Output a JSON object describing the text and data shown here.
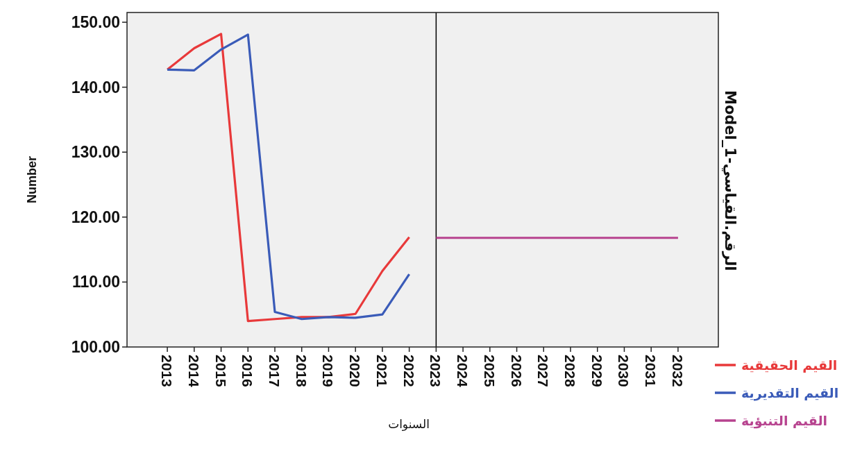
{
  "chart_data": {
    "type": "line",
    "xlabel": "السنوات",
    "ylabel": "Number",
    "y2label": "Model_1-الرقم.القياسي",
    "xlim": [
      2011.5,
      2033.5
    ],
    "xticks": [
      2013,
      2014,
      2015,
      2016,
      2017,
      2018,
      2019,
      2020,
      2021,
      2022,
      2023,
      2024,
      2025,
      2026,
      2027,
      2028,
      2029,
      2030,
      2031,
      2032
    ],
    "ylim": [
      100,
      151.5
    ],
    "yticks": [
      {
        "value": 100,
        "label": "100.00"
      },
      {
        "value": 110,
        "label": "110.00"
      },
      {
        "value": 120,
        "label": "120.00"
      },
      {
        "value": 130,
        "label": "130.00"
      },
      {
        "value": 140,
        "label": "140.00"
      },
      {
        "value": 150,
        "label": "150.00"
      }
    ],
    "grid": false,
    "legend": "bottom right",
    "marker": "none",
    "line_style": "solid",
    "ref_lines": [
      {
        "axis": "x",
        "value": 2023,
        "color": "#000000"
      }
    ],
    "series": [
      {
        "name": "القيم الحقيقية",
        "color": "#e8393a",
        "x": [
          2013,
          2014,
          2015,
          2016,
          2017,
          2018,
          2019,
          2020,
          2021,
          2022
        ],
        "values": [
          142.7,
          146.0,
          148.2,
          104.0,
          104.3,
          104.6,
          104.6,
          105.1,
          111.7,
          116.9
        ]
      },
      {
        "name": "القيم التقديرية",
        "color": "#3a5bb8",
        "x": [
          2013,
          2014,
          2015,
          2016,
          2017,
          2018,
          2019,
          2020,
          2021,
          2022
        ],
        "values": [
          142.7,
          142.6,
          145.8,
          148.1,
          105.4,
          104.3,
          104.6,
          104.5,
          105.0,
          111.2
        ]
      },
      {
        "name": "القيم التنبؤية",
        "color": "#b7438f",
        "x": [
          2023,
          2024,
          2025,
          2026,
          2027,
          2028,
          2029,
          2030,
          2031,
          2032
        ],
        "values": [
          116.8,
          116.8,
          116.8,
          116.8,
          116.8,
          116.8,
          116.8,
          116.8,
          116.8,
          116.8
        ]
      }
    ]
  }
}
